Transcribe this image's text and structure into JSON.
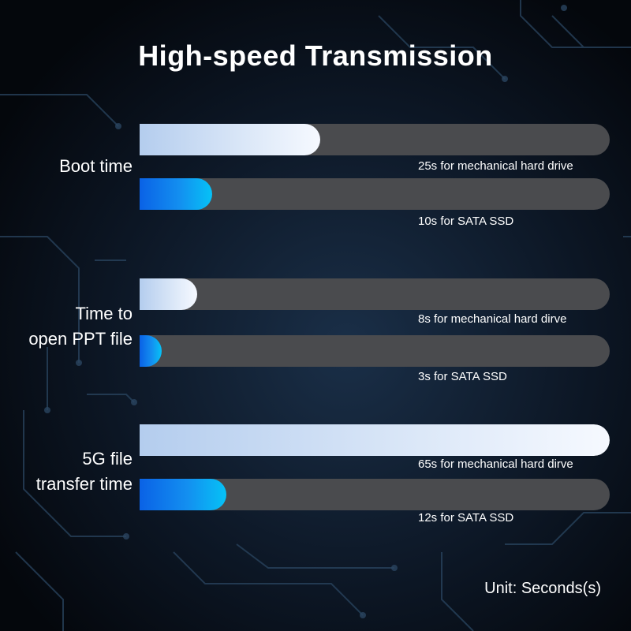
{
  "chart_data": {
    "type": "bar",
    "orientation": "horizontal",
    "title": "High-speed Transmission",
    "unit_note": "Unit: Seconds(s)",
    "xlim": [
      0,
      65
    ],
    "grid": false,
    "groups": [
      {
        "label_lines": [
          "Boot time"
        ],
        "bars": [
          {
            "series": "hdd",
            "value": 25,
            "caption": "25s for mechanical hard drive"
          },
          {
            "series": "ssd",
            "value": 10,
            "caption": "10s for SATA SSD"
          }
        ]
      },
      {
        "label_lines": [
          "Time to",
          "open PPT file"
        ],
        "bars": [
          {
            "series": "hdd",
            "value": 8,
            "caption": "8s for mechanical hard dirve"
          },
          {
            "series": "ssd",
            "value": 3,
            "caption": "3s for SATA SSD"
          }
        ]
      },
      {
        "label_lines": [
          "5G file",
          "transfer time"
        ],
        "bars": [
          {
            "series": "hdd",
            "value": 65,
            "caption": "65s for mechanical hard dirve"
          },
          {
            "series": "ssd",
            "value": 12,
            "caption": "12s for SATA SSD"
          }
        ]
      }
    ],
    "colors": {
      "hdd_start": "#b4cdee",
      "hdd_end": "#f6f9ff",
      "ssd_start": "#0a62e6",
      "ssd_end": "#06c2f6",
      "track": "#4a4b4e",
      "background": "#050a12"
    }
  }
}
